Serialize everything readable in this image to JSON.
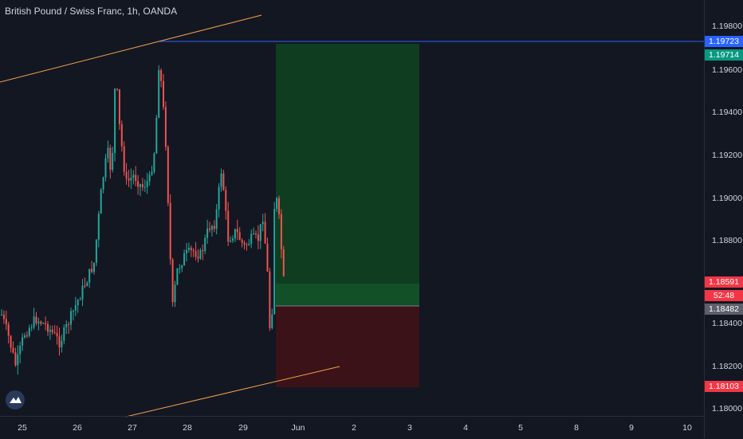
{
  "header": {
    "title": "British Pound / Swiss Franc, 1h, OANDA"
  },
  "price_axis": {
    "ticks": [
      "1.19800",
      "1.19600",
      "1.19400",
      "1.19200",
      "1.19000",
      "1.18800",
      "1.18400",
      "1.18200",
      "1.18000"
    ],
    "labels": {
      "top_line": "1.19723",
      "target": "1.19714",
      "last": "1.18591",
      "countdown": "52:48",
      "entry": "1.18482",
      "stop": "1.18103"
    }
  },
  "time_axis": {
    "ticks": [
      "25",
      "26",
      "27",
      "28",
      "29",
      "Jun",
      "2",
      "3",
      "4",
      "5",
      "8",
      "9",
      "10"
    ]
  },
  "colors": {
    "background": "#131722",
    "up": "#26a69a",
    "down": "#ef5350",
    "trendline": "#f0a04b",
    "hline": "#2962ff",
    "profit_zone": "#0d3b1f",
    "loss_zone": "#3d141c",
    "target_label": "#089981",
    "stop_label": "#f23645"
  },
  "icons": {
    "logo": "tradingview-logo-icon"
  }
}
